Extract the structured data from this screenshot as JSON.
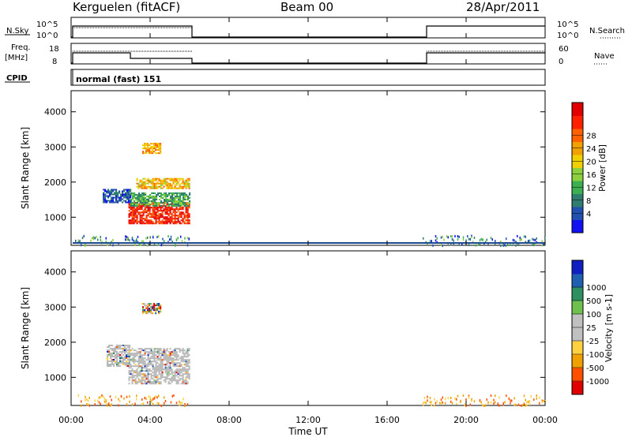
{
  "header": {
    "station": "Kerguelen (fitACF)",
    "beam": "Beam 00",
    "date": "28/Apr/2011"
  },
  "panels": {
    "nsky": {
      "label": "N.Sky",
      "ticks_left": [
        "10^5",
        "10^0"
      ],
      "ticks_right": [
        "10^5",
        "10^0"
      ],
      "right_label": "N.Search"
    },
    "freq": {
      "label_line1": "Freq.",
      "label_line2": "[MHz]",
      "ticks_left": [
        "18",
        "8"
      ],
      "ticks_right": [
        "60",
        "0"
      ],
      "right_label": "Nave"
    },
    "cpid": {
      "label": "CPID",
      "value": "normal (fast) 151"
    }
  },
  "colors": {
    "power": [
      "#1010f0",
      "#2050b0",
      "#2e7d6e",
      "#3cb050",
      "#8cd040",
      "#f0d000",
      "#f0a000",
      "#ff6000",
      "#ff2000",
      "#e00000"
    ],
    "velocity": [
      "#e00000",
      "#ff5000",
      "#f0a000",
      "#ffd040",
      "#c0c0c0",
      "#c0c0c0",
      "#70c050",
      "#2e8f60",
      "#2060b0",
      "#1020c0"
    ],
    "ground_scatter": "#b8b8b8"
  },
  "chart_data": [
    {
      "type": "heatmap",
      "name": "power",
      "ylabel": "Slant Range [km]",
      "yticks": [
        "1000",
        "2000",
        "3000",
        "4000"
      ],
      "ylim": [
        200,
        4600
      ],
      "xlim": [
        "00:00",
        "24:00"
      ],
      "colorbar": {
        "label": "Power [dB]",
        "ticks": [
          "4",
          "8",
          "12",
          "16",
          "20",
          "24",
          "28"
        ],
        "range": [
          0,
          30
        ]
      },
      "data_blocks": [
        {
          "t_start": 2.9,
          "t_end": 6.0,
          "r_start": 800,
          "r_end": 1400,
          "level": 26
        },
        {
          "t_start": 3.0,
          "t_end": 6.0,
          "r_start": 1300,
          "r_end": 1700,
          "level": 10
        },
        {
          "t_start": 3.3,
          "t_end": 6.0,
          "r_start": 1800,
          "r_end": 2100,
          "level": 18
        },
        {
          "t_start": 1.6,
          "t_end": 3.0,
          "r_start": 1400,
          "r_end": 1800,
          "level": 5
        },
        {
          "t_start": 3.6,
          "t_end": 4.5,
          "r_start": 2800,
          "r_end": 3100,
          "level": 19
        }
      ]
    },
    {
      "type": "heatmap",
      "name": "velocity",
      "ylabel": "Slant Range [km]",
      "yticks": [
        "1000",
        "2000",
        "3000",
        "4000"
      ],
      "ylim": [
        200,
        4600
      ],
      "xlim": [
        "00:00",
        "24:00"
      ],
      "xticks": [
        "00:00",
        "04:00",
        "08:00",
        "12:00",
        "16:00",
        "20:00",
        "00:00"
      ],
      "xlabel": "Time UT",
      "colorbar": {
        "label": "Velocity [m s-1]",
        "ticks": [
          "-1000",
          "-500",
          "-100",
          "-25",
          "25",
          "100",
          "500",
          "1000"
        ]
      },
      "data_blocks": [
        {
          "t_start": 2.9,
          "t_end": 6.0,
          "r_start": 800,
          "r_end": 1800,
          "level": 0
        },
        {
          "t_start": 1.8,
          "t_end": 3.0,
          "r_start": 1300,
          "r_end": 1900,
          "level": 0
        },
        {
          "t_start": 3.6,
          "t_end": 4.5,
          "r_start": 2800,
          "r_end": 3100,
          "level": 60
        }
      ]
    }
  ]
}
